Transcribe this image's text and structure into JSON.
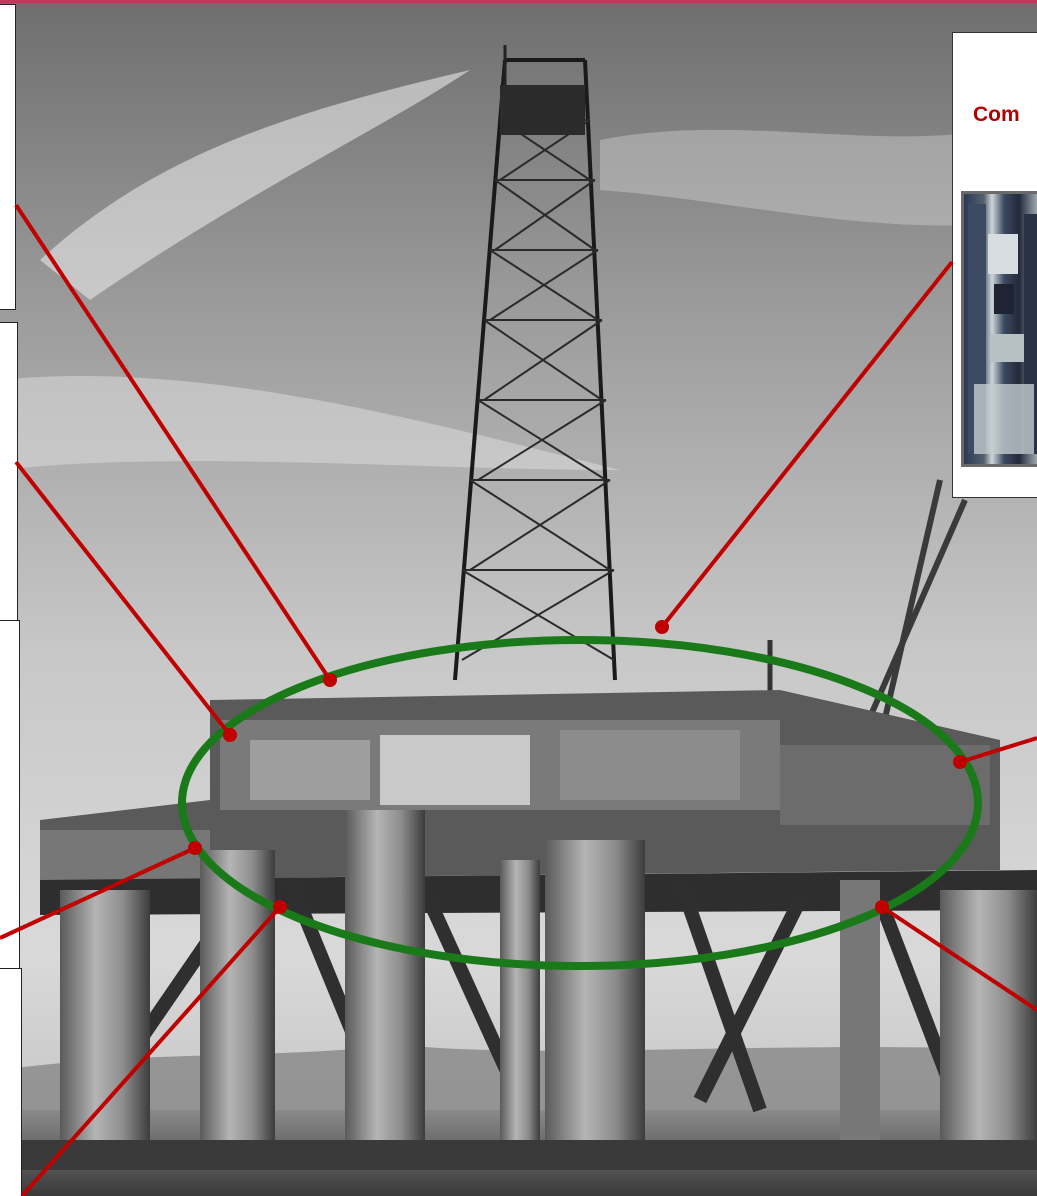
{
  "callout": {
    "title": "Com"
  },
  "colors": {
    "accent_red": "#c00000",
    "ellipse_green": "#1a7a1a",
    "page_border": "#c0395a"
  },
  "icons": {
    "photo": "oil-rig-photo",
    "inset": "equipment-rack-photo"
  }
}
